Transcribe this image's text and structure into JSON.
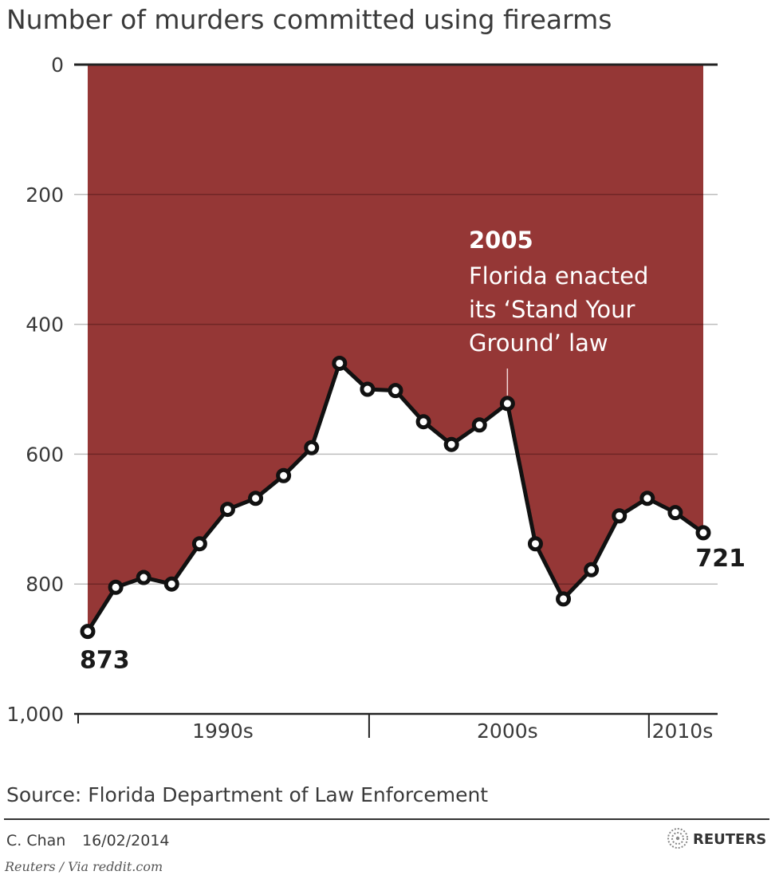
{
  "chart_data": {
    "type": "area",
    "title": "Number of murders committed using firearms",
    "y_axis": {
      "inverted": true,
      "range": [
        0,
        1000
      ],
      "ticks": [
        0,
        200,
        400,
        600,
        800,
        1000
      ],
      "tick_labels": [
        "0",
        "200",
        "400",
        "600",
        "800",
        "1,000"
      ]
    },
    "x_axis": {
      "range": [
        1989,
        2012
      ],
      "period_labels": [
        {
          "label": "1990s",
          "from": 1989,
          "to": 1999
        },
        {
          "label": "2000s",
          "from": 1999,
          "to": 2009
        },
        {
          "label": "2010s",
          "from": 2009,
          "to": 2012
        }
      ],
      "dividers": [
        1999,
        2009
      ]
    },
    "series": [
      {
        "x": [
          1989,
          1990,
          1991,
          1992,
          1993,
          1994,
          1995,
          1996,
          1997,
          1998,
          1999,
          2000,
          2001,
          2002,
          2003,
          2004,
          2005,
          2006,
          2007,
          2008,
          2009,
          2010,
          2011,
          2012
        ],
        "values": [
          873,
          805,
          790,
          800,
          738,
          685,
          668,
          633,
          590,
          460,
          500,
          502,
          550,
          585,
          555,
          522,
          738,
          823,
          778,
          695,
          668,
          690,
          721,
          null
        ]
      }
    ],
    "data_labels": [
      {
        "x": 1989,
        "text": "873"
      },
      {
        "x": 2011,
        "text": "721"
      }
    ],
    "annotation": {
      "x": 2004,
      "year": "2005",
      "lines": [
        "Florida enacted",
        "its ‘Stand Your",
        "Ground’ law"
      ]
    },
    "colors": {
      "fill": "#953736",
      "line": "#111111",
      "point_fill": "#ffffff",
      "grid_on_fill": "#6f2625",
      "grid_on_white": "#bdbdbd",
      "axis": "#222222"
    },
    "source": "Source: Florida Department of Law Enforcement",
    "credit_author": "C. Chan",
    "credit_date": "16/02/2014",
    "brand": "REUTERS",
    "brand_icon": "reuters-dot-logo-icon",
    "via": "Reuters / Via reddit.com"
  }
}
